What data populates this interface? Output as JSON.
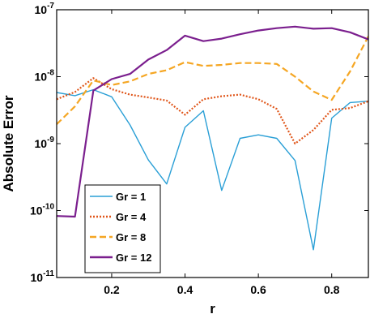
{
  "chart_data": {
    "type": "line",
    "xlabel": "r",
    "ylabel": "Absolute Error",
    "xlim": [
      0.05,
      0.9
    ],
    "ylim": [
      1e-11,
      1e-07
    ],
    "yscale": "log",
    "grid": false,
    "legend_position": "bottom-left",
    "x_ticks": [
      0.2,
      0.4,
      0.6,
      0.8
    ],
    "x_tick_labels": [
      "0.2",
      "0.4",
      "0.6",
      "0.8"
    ],
    "y_ticks": [
      {
        "value": 1e-11,
        "base": "10",
        "exp": "-11"
      },
      {
        "value": 1e-10,
        "base": "10",
        "exp": "-10"
      },
      {
        "value": 1e-09,
        "base": "10",
        "exp": "-9"
      },
      {
        "value": 1e-08,
        "base": "10",
        "exp": "-8"
      },
      {
        "value": 1e-07,
        "base": "10",
        "exp": "-7"
      }
    ],
    "series": [
      {
        "name": "Gr = 1",
        "color": "#2a9fd6",
        "dash": "solid",
        "x": [
          0.05,
          0.1,
          0.15,
          0.2,
          0.25,
          0.3,
          0.35,
          0.4,
          0.45,
          0.5,
          0.55,
          0.6,
          0.65,
          0.7,
          0.75,
          0.8,
          0.85,
          0.9
        ],
        "y": [
          5.8e-09,
          5.2e-09,
          6.4e-09,
          5e-09,
          1.9e-09,
          5.7e-10,
          2.5e-10,
          1.75e-09,
          3.1e-09,
          2e-10,
          1.2e-09,
          1.35e-09,
          1.2e-09,
          5.6e-10,
          2.6e-11,
          2.4e-09,
          4.1e-09,
          4.3e-09
        ]
      },
      {
        "name": "Gr = 4",
        "color": "#e0561a",
        "dash": "dotted",
        "x": [
          0.05,
          0.1,
          0.15,
          0.2,
          0.25,
          0.3,
          0.35,
          0.4,
          0.45,
          0.5,
          0.55,
          0.6,
          0.65,
          0.7,
          0.75,
          0.8,
          0.85,
          0.9
        ],
        "y": [
          4.6e-09,
          5.9e-09,
          9.5e-09,
          6.5e-09,
          5.4e-09,
          4.9e-09,
          4.4e-09,
          2.7e-09,
          4.6e-09,
          5.1e-09,
          5.4e-09,
          4.6e-09,
          3.3e-09,
          1e-09,
          1.6e-09,
          3.2e-09,
          3.4e-09,
          4.3e-09
        ]
      },
      {
        "name": "Gr = 8",
        "color": "#f5a623",
        "dash": "dashed",
        "x": [
          0.05,
          0.1,
          0.15,
          0.2,
          0.25,
          0.3,
          0.35,
          0.4,
          0.45,
          0.5,
          0.55,
          0.6,
          0.65,
          0.7,
          0.75,
          0.8,
          0.85,
          0.9
        ],
        "y": [
          1.95e-09,
          3.6e-09,
          8.8e-09,
          7.5e-09,
          8.5e-09,
          1.1e-08,
          1.25e-08,
          1.65e-08,
          1.45e-08,
          1.5e-08,
          1.6e-08,
          1.6e-08,
          1.55e-08,
          1e-08,
          6e-09,
          4.5e-09,
          1.2e-08,
          4e-08
        ]
      },
      {
        "name": "Gr = 12",
        "color": "#7b1f8e",
        "dash": "solid",
        "x": [
          0.05,
          0.1,
          0.15,
          0.2,
          0.25,
          0.3,
          0.35,
          0.4,
          0.45,
          0.5,
          0.55,
          0.6,
          0.65,
          0.7,
          0.75,
          0.8,
          0.85,
          0.9
        ],
        "y": [
          8.3e-11,
          8.1e-11,
          6.2e-09,
          9.2e-09,
          1.1e-08,
          1.8e-08,
          2.5e-08,
          4.1e-08,
          3.4e-08,
          3.7e-08,
          4.3e-08,
          4.9e-08,
          5.3e-08,
          5.6e-08,
          5.2e-08,
          5.3e-08,
          4.6e-08,
          3.6e-08
        ]
      }
    ]
  }
}
